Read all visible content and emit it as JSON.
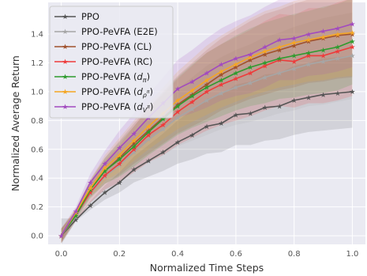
{
  "chart_data": {
    "type": "line",
    "xlabel": "Normalized Time Steps",
    "ylabel": "Normalized Average Return",
    "xlim": [
      -0.045,
      1.045
    ],
    "ylim": [
      -0.06,
      1.62
    ],
    "xticks": [
      0.0,
      0.2,
      0.4,
      0.6,
      0.8,
      1.0
    ],
    "xtick_labels": [
      "0.0",
      "0.2",
      "0.4",
      "0.6",
      "0.8",
      "1.0"
    ],
    "yticks": [
      0.0,
      0.2,
      0.4,
      0.6,
      0.8,
      1.0,
      1.2,
      1.4
    ],
    "ytick_labels": [
      "0.0",
      "0.2",
      "0.4",
      "0.6",
      "0.8",
      "1.0",
      "1.2",
      "1.4"
    ],
    "grid": true,
    "legend_position": "top-left",
    "background_color": "#eaeaf2",
    "x": [
      0.0,
      0.05,
      0.1,
      0.15,
      0.2,
      0.25,
      0.3,
      0.35,
      0.4,
      0.45,
      0.5,
      0.55,
      0.6,
      0.65,
      0.7,
      0.75,
      0.8,
      0.85,
      0.9,
      0.95,
      1.0
    ],
    "series": [
      {
        "name": "PPO",
        "color": "#555555",
        "values": [
          0.0,
          0.11,
          0.21,
          0.3,
          0.37,
          0.46,
          0.52,
          0.58,
          0.65,
          0.7,
          0.76,
          0.78,
          0.84,
          0.85,
          0.89,
          0.9,
          0.94,
          0.96,
          0.98,
          0.99,
          1.0
        ],
        "band": [
          0.12,
          0.01,
          0.03,
          0.05,
          0.07,
          0.09,
          0.11,
          0.13,
          0.15,
          0.17,
          0.19,
          0.2,
          0.21,
          0.22,
          0.23,
          0.23,
          0.24,
          0.24,
          0.25,
          0.25,
          0.25
        ]
      },
      {
        "name": "PPO-PeVFA (E2E)",
        "color": "#a6a6a6",
        "values": [
          0.0,
          0.13,
          0.29,
          0.41,
          0.49,
          0.58,
          0.67,
          0.74,
          0.82,
          0.88,
          0.94,
          0.99,
          1.03,
          1.06,
          1.1,
          1.13,
          1.16,
          1.19,
          1.21,
          1.23,
          1.25
        ],
        "band": [
          0.05,
          0.03,
          0.06,
          0.09,
          0.12,
          0.14,
          0.16,
          0.18,
          0.2,
          0.22,
          0.24,
          0.25,
          0.26,
          0.27,
          0.28,
          0.28,
          0.29,
          0.29,
          0.3,
          0.3,
          0.3
        ]
      },
      {
        "name": "PPO-PeVFA (CL)",
        "color": "#a0522d",
        "values": [
          0.0,
          0.15,
          0.33,
          0.45,
          0.54,
          0.64,
          0.73,
          0.82,
          0.91,
          0.98,
          1.05,
          1.12,
          1.17,
          1.22,
          1.26,
          1.29,
          1.32,
          1.35,
          1.37,
          1.39,
          1.4
        ],
        "band": [
          0.05,
          0.03,
          0.06,
          0.09,
          0.12,
          0.14,
          0.16,
          0.18,
          0.2,
          0.22,
          0.24,
          0.25,
          0.26,
          0.27,
          0.28,
          0.28,
          0.29,
          0.29,
          0.3,
          0.3,
          0.3
        ]
      },
      {
        "name": "PPO-PeVFA (RC)",
        "color": "#ee3b3b",
        "values": [
          0.0,
          0.14,
          0.3,
          0.42,
          0.5,
          0.6,
          0.7,
          0.77,
          0.86,
          0.93,
          1.0,
          1.05,
          1.09,
          1.13,
          1.18,
          1.22,
          1.21,
          1.25,
          1.25,
          1.28,
          1.31
        ],
        "band": [
          0.05,
          0.04,
          0.07,
          0.1,
          0.13,
          0.16,
          0.19,
          0.21,
          0.23,
          0.25,
          0.27,
          0.28,
          0.29,
          0.3,
          0.31,
          0.32,
          0.32,
          0.33,
          0.33,
          0.34,
          0.34
        ]
      },
      {
        "name": "PPO-PeVFA ($d_\\pi$)",
        "color": "#2e9b2e",
        "values": [
          0.0,
          0.14,
          0.32,
          0.45,
          0.53,
          0.62,
          0.72,
          0.81,
          0.9,
          0.97,
          1.03,
          1.08,
          1.13,
          1.17,
          1.2,
          1.23,
          1.25,
          1.27,
          1.29,
          1.31,
          1.35
        ],
        "band": [
          0.05,
          0.03,
          0.06,
          0.09,
          0.12,
          0.14,
          0.16,
          0.18,
          0.2,
          0.22,
          0.24,
          0.25,
          0.26,
          0.27,
          0.28,
          0.28,
          0.29,
          0.29,
          0.3,
          0.3,
          0.3
        ]
      },
      {
        "name": "PPO-PeVFA ($d_{\\rho^\\pi}$)",
        "color": "#f5a623",
        "values": [
          0.0,
          0.16,
          0.33,
          0.47,
          0.56,
          0.66,
          0.76,
          0.85,
          0.94,
          1.01,
          1.08,
          1.14,
          1.19,
          1.24,
          1.28,
          1.31,
          1.34,
          1.36,
          1.38,
          1.4,
          1.41
        ],
        "band": [
          0.05,
          0.03,
          0.06,
          0.09,
          0.12,
          0.14,
          0.16,
          0.18,
          0.2,
          0.22,
          0.24,
          0.25,
          0.26,
          0.27,
          0.28,
          0.28,
          0.29,
          0.29,
          0.3,
          0.3,
          0.3
        ]
      },
      {
        "name": "PPO-PeVFA ($d_{V^\\pi}$)",
        "color": "#a24bbf",
        "values": [
          0.0,
          0.17,
          0.37,
          0.5,
          0.61,
          0.71,
          0.82,
          0.92,
          1.02,
          1.07,
          1.13,
          1.19,
          1.23,
          1.26,
          1.31,
          1.36,
          1.37,
          1.4,
          1.42,
          1.44,
          1.47
        ],
        "band": [
          0.05,
          0.03,
          0.06,
          0.09,
          0.12,
          0.14,
          0.16,
          0.18,
          0.2,
          0.22,
          0.24,
          0.25,
          0.26,
          0.27,
          0.28,
          0.28,
          0.29,
          0.29,
          0.3,
          0.3,
          0.3
        ]
      }
    ]
  },
  "legend_display": [
    {
      "prefix": "PPO",
      "base": "",
      "sub": "",
      "subsup": "",
      "suffix": ""
    },
    {
      "prefix": "PPO-PeVFA (E2E)",
      "base": "",
      "sub": "",
      "subsup": "",
      "suffix": ""
    },
    {
      "prefix": "PPO-PeVFA (CL)",
      "base": "",
      "sub": "",
      "subsup": "",
      "suffix": ""
    },
    {
      "prefix": "PPO-PeVFA (RC)",
      "base": "",
      "sub": "",
      "subsup": "",
      "suffix": ""
    },
    {
      "prefix": "PPO-PeVFA (",
      "base": "d",
      "sub": "π",
      "subsup": "",
      "suffix": ")"
    },
    {
      "prefix": "PPO-PeVFA (",
      "base": "d",
      "sub": "ρ",
      "subsup": "π",
      "suffix": ")"
    },
    {
      "prefix": "PPO-PeVFA (",
      "base": "d",
      "sub": "V",
      "subsup": "π",
      "suffix": ")"
    }
  ]
}
